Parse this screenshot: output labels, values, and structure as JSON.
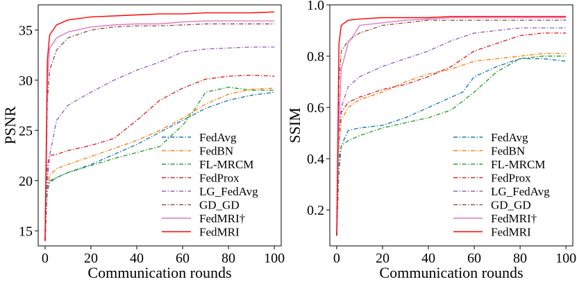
{
  "chart_data": [
    {
      "type": "line",
      "xlabel": "Communication rounds",
      "ylabel": "PSNR",
      "xlim": [
        -3,
        103
      ],
      "ylim": [
        13.5,
        37.5
      ],
      "xticks": [
        "0",
        "20",
        "40",
        "60",
        "80",
        "100"
      ],
      "yticks": [
        "15",
        "20",
        "25",
        "30",
        "35"
      ],
      "legend_position": "bottom-right",
      "grid": false,
      "series": [
        {
          "name": "FedAvg",
          "color": "#1f77b4",
          "dash": "dashdot",
          "points": [
            [
              0,
              14
            ],
            [
              1,
              19
            ],
            [
              2,
              19.8
            ],
            [
              5,
              20.3
            ],
            [
              10,
              20.8
            ],
            [
              20,
              21.6
            ],
            [
              30,
              22.6
            ],
            [
              40,
              23.6
            ],
            [
              50,
              24.8
            ],
            [
              60,
              26.0
            ],
            [
              70,
              27.2
            ],
            [
              80,
              28.0
            ],
            [
              90,
              28.5
            ],
            [
              100,
              28.8
            ]
          ]
        },
        {
          "name": "FedBN",
          "color": "#ff7f0e",
          "dash": "dashdot",
          "points": [
            [
              0,
              14
            ],
            [
              1,
              19.5
            ],
            [
              2,
              20.5
            ],
            [
              5,
              21.2
            ],
            [
              10,
              21.6
            ],
            [
              20,
              22.4
            ],
            [
              30,
              23.2
            ],
            [
              40,
              24.0
            ],
            [
              50,
              25.0
            ],
            [
              60,
              26.2
            ],
            [
              70,
              27.6
            ],
            [
              80,
              28.6
            ],
            [
              90,
              29.1
            ],
            [
              100,
              29.2
            ]
          ]
        },
        {
          "name": "FL-MRCM",
          "color": "#2ca02c",
          "dash": "dashdot",
          "points": [
            [
              0,
              14
            ],
            [
              1,
              19.5
            ],
            [
              2,
              20.0
            ],
            [
              5,
              20.3
            ],
            [
              10,
              20.8
            ],
            [
              20,
              21.5
            ],
            [
              30,
              22.2
            ],
            [
              40,
              22.8
            ],
            [
              50,
              23.4
            ],
            [
              60,
              25.5
            ],
            [
              65,
              27.0
            ],
            [
              70,
              28.8
            ],
            [
              80,
              29.3
            ],
            [
              90,
              29.0
            ],
            [
              100,
              29.0
            ]
          ]
        },
        {
          "name": "FedProx",
          "color": "#d62728",
          "dash": "dashdot",
          "points": [
            [
              0,
              14
            ],
            [
              1,
              21.5
            ],
            [
              2,
              22.5
            ],
            [
              5,
              22.6
            ],
            [
              10,
              23.0
            ],
            [
              20,
              23.5
            ],
            [
              30,
              24.2
            ],
            [
              40,
              26.0
            ],
            [
              50,
              28.0
            ],
            [
              60,
              29.2
            ],
            [
              70,
              30.1
            ],
            [
              80,
              30.4
            ],
            [
              90,
              30.5
            ],
            [
              100,
              30.4
            ]
          ]
        },
        {
          "name": "LG_FedAvg",
          "color": "#9467bd",
          "dash": "dashdot",
          "points": [
            [
              0,
              14
            ],
            [
              1,
              20
            ],
            [
              2,
              22.5
            ],
            [
              5,
              26.0
            ],
            [
              10,
              27.5
            ],
            [
              20,
              28.8
            ],
            [
              30,
              30.0
            ],
            [
              40,
              31.0
            ],
            [
              50,
              31.8
            ],
            [
              60,
              32.8
            ],
            [
              70,
              33.1
            ],
            [
              80,
              33.2
            ],
            [
              90,
              33.3
            ],
            [
              100,
              33.3
            ]
          ]
        },
        {
          "name": "GD_GD",
          "color": "#8c564b",
          "dash": "dashdot",
          "points": [
            [
              0,
              14
            ],
            [
              1,
              28
            ],
            [
              2,
              31
            ],
            [
              5,
              33.0
            ],
            [
              10,
              34.2
            ],
            [
              20,
              35.0
            ],
            [
              30,
              35.3
            ],
            [
              40,
              35.4
            ],
            [
              50,
              35.4
            ],
            [
              60,
              35.5
            ],
            [
              70,
              35.6
            ],
            [
              80,
              35.6
            ],
            [
              90,
              35.6
            ],
            [
              100,
              35.6
            ]
          ]
        },
        {
          "name": "FedMRI†",
          "color": "#e377c2",
          "dash": "solid",
          "points": [
            [
              0,
              14
            ],
            [
              1,
              30
            ],
            [
              2,
              33.2
            ],
            [
              5,
              34.2
            ],
            [
              10,
              34.8
            ],
            [
              20,
              35.3
            ],
            [
              30,
              35.5
            ],
            [
              40,
              35.6
            ],
            [
              50,
              35.6
            ],
            [
              60,
              35.8
            ],
            [
              70,
              35.9
            ],
            [
              80,
              35.9
            ],
            [
              90,
              35.9
            ],
            [
              100,
              35.9
            ]
          ]
        },
        {
          "name": "FedMRI",
          "color": "#ff0000",
          "dash": "solid",
          "points": [
            [
              0,
              14
            ],
            [
              1,
              32
            ],
            [
              2,
              34.5
            ],
            [
              5,
              35.5
            ],
            [
              10,
              36.0
            ],
            [
              20,
              36.3
            ],
            [
              30,
              36.4
            ],
            [
              40,
              36.5
            ],
            [
              50,
              36.6
            ],
            [
              60,
              36.6
            ],
            [
              70,
              36.7
            ],
            [
              80,
              36.7
            ],
            [
              90,
              36.7
            ],
            [
              100,
              36.8
            ]
          ]
        }
      ]
    },
    {
      "type": "line",
      "xlabel": "Communication rounds",
      "ylabel": "SSIM",
      "xlim": [
        -3,
        103
      ],
      "ylim": [
        0.06,
        1.0
      ],
      "xticks": [
        "0",
        "20",
        "40",
        "60",
        "80",
        "100"
      ],
      "yticks": [
        "0.2",
        "0.4",
        "0.6",
        "0.8",
        "1.0"
      ],
      "legend_position": "bottom-right",
      "grid": false,
      "series": [
        {
          "name": "FedAvg",
          "color": "#1f77b4",
          "dash": "dashdot",
          "points": [
            [
              0,
              0.1
            ],
            [
              1,
              0.35
            ],
            [
              2,
              0.45
            ],
            [
              5,
              0.51
            ],
            [
              10,
              0.52
            ],
            [
              20,
              0.53
            ],
            [
              30,
              0.56
            ],
            [
              40,
              0.6
            ],
            [
              50,
              0.64
            ],
            [
              55,
              0.66
            ],
            [
              60,
              0.72
            ],
            [
              70,
              0.76
            ],
            [
              80,
              0.79
            ],
            [
              90,
              0.79
            ],
            [
              100,
              0.78
            ]
          ]
        },
        {
          "name": "FedBN",
          "color": "#ff7f0e",
          "dash": "dashdot",
          "points": [
            [
              0,
              0.1
            ],
            [
              1,
              0.45
            ],
            [
              2,
              0.55
            ],
            [
              5,
              0.6
            ],
            [
              10,
              0.63
            ],
            [
              20,
              0.66
            ],
            [
              30,
              0.7
            ],
            [
              40,
              0.73
            ],
            [
              50,
              0.75
            ],
            [
              60,
              0.78
            ],
            [
              70,
              0.79
            ],
            [
              80,
              0.8
            ],
            [
              90,
              0.81
            ],
            [
              100,
              0.81
            ]
          ]
        },
        {
          "name": "FL-MRCM",
          "color": "#2ca02c",
          "dash": "dashdot",
          "points": [
            [
              0,
              0.1
            ],
            [
              1,
              0.4
            ],
            [
              2,
              0.45
            ],
            [
              5,
              0.47
            ],
            [
              10,
              0.49
            ],
            [
              20,
              0.52
            ],
            [
              30,
              0.54
            ],
            [
              40,
              0.56
            ],
            [
              50,
              0.59
            ],
            [
              60,
              0.66
            ],
            [
              70,
              0.74
            ],
            [
              80,
              0.79
            ],
            [
              90,
              0.8
            ],
            [
              100,
              0.8
            ]
          ]
        },
        {
          "name": "FedProx",
          "color": "#d62728",
          "dash": "dashdot",
          "points": [
            [
              0,
              0.1
            ],
            [
              1,
              0.5
            ],
            [
              2,
              0.58
            ],
            [
              5,
              0.62
            ],
            [
              10,
              0.64
            ],
            [
              20,
              0.67
            ],
            [
              30,
              0.69
            ],
            [
              40,
              0.72
            ],
            [
              50,
              0.76
            ],
            [
              60,
              0.82
            ],
            [
              70,
              0.85
            ],
            [
              80,
              0.88
            ],
            [
              90,
              0.89
            ],
            [
              100,
              0.89
            ]
          ]
        },
        {
          "name": "LG_FedAvg",
          "color": "#9467bd",
          "dash": "dashdot",
          "points": [
            [
              0,
              0.1
            ],
            [
              1,
              0.5
            ],
            [
              2,
              0.6
            ],
            [
              5,
              0.68
            ],
            [
              10,
              0.72
            ],
            [
              20,
              0.76
            ],
            [
              30,
              0.79
            ],
            [
              40,
              0.82
            ],
            [
              50,
              0.86
            ],
            [
              60,
              0.89
            ],
            [
              70,
              0.9
            ],
            [
              80,
              0.91
            ],
            [
              90,
              0.91
            ],
            [
              100,
              0.91
            ]
          ]
        },
        {
          "name": "GD_GD",
          "color": "#8c564b",
          "dash": "dashdot",
          "points": [
            [
              0,
              0.1
            ],
            [
              1,
              0.7
            ],
            [
              2,
              0.82
            ],
            [
              5,
              0.86
            ],
            [
              10,
              0.89
            ],
            [
              20,
              0.92
            ],
            [
              30,
              0.93
            ],
            [
              40,
              0.94
            ],
            [
              50,
              0.94
            ],
            [
              60,
              0.94
            ],
            [
              70,
              0.94
            ],
            [
              80,
              0.94
            ],
            [
              90,
              0.94
            ],
            [
              100,
              0.94
            ]
          ]
        },
        {
          "name": "FedMRI†",
          "color": "#e377c2",
          "dash": "solid",
          "points": [
            [
              0,
              0.1
            ],
            [
              1,
              0.55
            ],
            [
              2,
              0.75
            ],
            [
              5,
              0.85
            ],
            [
              8,
              0.89
            ],
            [
              10,
              0.92
            ],
            [
              20,
              0.93
            ],
            [
              30,
              0.94
            ],
            [
              40,
              0.945
            ],
            [
              50,
              0.95
            ],
            [
              60,
              0.95
            ],
            [
              70,
              0.95
            ],
            [
              80,
              0.95
            ],
            [
              90,
              0.95
            ],
            [
              100,
              0.95
            ]
          ]
        },
        {
          "name": "FedMRI",
          "color": "#ff0000",
          "dash": "solid",
          "points": [
            [
              0,
              0.1
            ],
            [
              1,
              0.85
            ],
            [
              2,
              0.92
            ],
            [
              5,
              0.94
            ],
            [
              10,
              0.945
            ],
            [
              20,
              0.95
            ],
            [
              30,
              0.95
            ],
            [
              40,
              0.95
            ],
            [
              50,
              0.955
            ],
            [
              60,
              0.955
            ],
            [
              70,
              0.955
            ],
            [
              80,
              0.955
            ],
            [
              90,
              0.955
            ],
            [
              100,
              0.955
            ]
          ]
        }
      ]
    }
  ]
}
